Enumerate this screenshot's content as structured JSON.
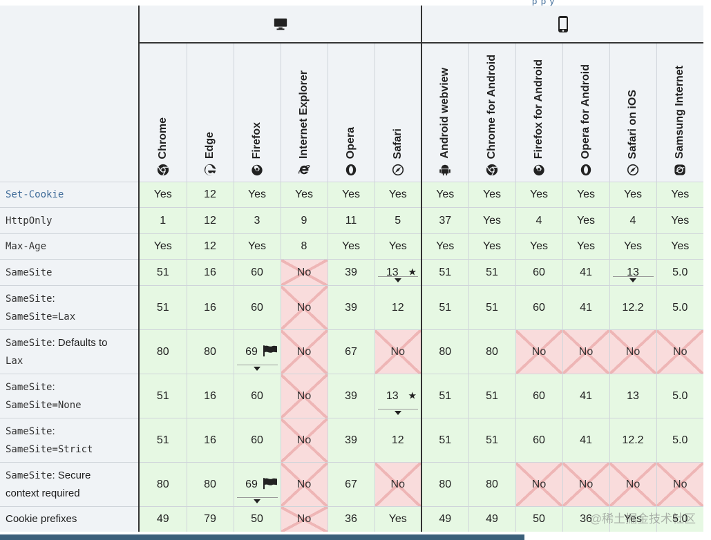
{
  "top_link_fragment": "p      p       y",
  "browsers": [
    {
      "name": "Chrome",
      "icon": "chrome-icon"
    },
    {
      "name": "Edge",
      "icon": "edge-icon"
    },
    {
      "name": "Firefox",
      "icon": "firefox-icon"
    },
    {
      "name": "Internet Explorer",
      "icon": "internet-explorer-icon"
    },
    {
      "name": "Opera",
      "icon": "opera-icon"
    },
    {
      "name": "Safari",
      "icon": "safari-icon"
    },
    {
      "name": "Android webview",
      "icon": "android-icon"
    },
    {
      "name": "Chrome for Android",
      "icon": "chrome-icon"
    },
    {
      "name": "Firefox for Android",
      "icon": "firefox-icon"
    },
    {
      "name": "Opera for Android",
      "icon": "opera-icon"
    },
    {
      "name": "Safari on iOS",
      "icon": "safari-icon"
    },
    {
      "name": "Samsung Internet",
      "icon": "samsung-internet-icon"
    }
  ],
  "platforms": [
    {
      "icon": "desktop-icon",
      "span": 6
    },
    {
      "icon": "mobile-icon",
      "span": 6
    }
  ],
  "rows": [
    {
      "code": "Set-Cookie",
      "link": true,
      "text": "",
      "height": 37,
      "cells": [
        [
          "Yes",
          "y"
        ],
        [
          "12",
          "y"
        ],
        [
          "Yes",
          "y"
        ],
        [
          "Yes",
          "y"
        ],
        [
          "Yes",
          "y"
        ],
        [
          "Yes",
          "y"
        ],
        [
          "Yes",
          "y"
        ],
        [
          "Yes",
          "y"
        ],
        [
          "Yes",
          "y"
        ],
        [
          "Yes",
          "y"
        ],
        [
          "Yes",
          "y"
        ],
        [
          "Yes",
          "y"
        ]
      ]
    },
    {
      "code": "HttpOnly",
      "text": "",
      "height": 38,
      "cells": [
        [
          "1",
          "y"
        ],
        [
          "12",
          "y"
        ],
        [
          "3",
          "y"
        ],
        [
          "9",
          "y"
        ],
        [
          "11",
          "y"
        ],
        [
          "5",
          "y"
        ],
        [
          "37",
          "y"
        ],
        [
          "Yes",
          "y"
        ],
        [
          "4",
          "y"
        ],
        [
          "Yes",
          "y"
        ],
        [
          "4",
          "y"
        ],
        [
          "Yes",
          "y"
        ]
      ]
    },
    {
      "code": "Max-Age",
      "text": "",
      "height": 37,
      "cells": [
        [
          "Yes",
          "y"
        ],
        [
          "12",
          "y"
        ],
        [
          "Yes",
          "y"
        ],
        [
          "8",
          "y"
        ],
        [
          "Yes",
          "y"
        ],
        [
          "Yes",
          "y"
        ],
        [
          "Yes",
          "y"
        ],
        [
          "Yes",
          "y"
        ],
        [
          "Yes",
          "y"
        ],
        [
          "Yes",
          "y"
        ],
        [
          "Yes",
          "y"
        ],
        [
          "Yes",
          "y"
        ]
      ]
    },
    {
      "code": "SameSite",
      "text": "",
      "height": 38,
      "cells": [
        [
          "51",
          "y"
        ],
        [
          "16",
          "y"
        ],
        [
          "60",
          "y"
        ],
        [
          "No",
          "n"
        ],
        [
          "39",
          "y"
        ],
        [
          "13",
          "y",
          "star-arrow"
        ],
        [
          "51",
          "y"
        ],
        [
          "51",
          "y"
        ],
        [
          "60",
          "y"
        ],
        [
          "41",
          "y"
        ],
        [
          "13",
          "y",
          "arrow"
        ],
        [
          "5.0",
          "y"
        ]
      ]
    },
    {
      "code": "SameSite",
      "text": ":",
      "code2": "SameSite=Lax",
      "height": 64,
      "cells": [
        [
          "51",
          "y"
        ],
        [
          "16",
          "y"
        ],
        [
          "60",
          "y"
        ],
        [
          "No",
          "n"
        ],
        [
          "39",
          "y"
        ],
        [
          "12",
          "y"
        ],
        [
          "51",
          "y"
        ],
        [
          "51",
          "y"
        ],
        [
          "60",
          "y"
        ],
        [
          "41",
          "y"
        ],
        [
          "12.2",
          "y"
        ],
        [
          "5.0",
          "y"
        ]
      ]
    },
    {
      "code": "SameSite",
      "text": ": Defaults to",
      "code2": "Lax",
      "height": 64,
      "cells": [
        [
          "80",
          "y"
        ],
        [
          "80",
          "y"
        ],
        [
          "69",
          "y",
          "flag-arrow"
        ],
        [
          "No",
          "n"
        ],
        [
          "67",
          "y"
        ],
        [
          "No",
          "n"
        ],
        [
          "80",
          "y"
        ],
        [
          "80",
          "y"
        ],
        [
          "No",
          "n"
        ],
        [
          "No",
          "n"
        ],
        [
          "No",
          "n"
        ],
        [
          "No",
          "n"
        ]
      ]
    },
    {
      "code": "SameSite",
      "text": ":",
      "code2": "SameSite=None",
      "height": 64,
      "cells": [
        [
          "51",
          "y"
        ],
        [
          "16",
          "y"
        ],
        [
          "60",
          "y"
        ],
        [
          "No",
          "n"
        ],
        [
          "39",
          "y"
        ],
        [
          "13",
          "y",
          "star-arrow"
        ],
        [
          "51",
          "y"
        ],
        [
          "51",
          "y"
        ],
        [
          "60",
          "y"
        ],
        [
          "41",
          "y"
        ],
        [
          "13",
          "y"
        ],
        [
          "5.0",
          "y"
        ]
      ]
    },
    {
      "code": "SameSite",
      "text": ":",
      "code2": "SameSite=Strict",
      "height": 64,
      "cells": [
        [
          "51",
          "y"
        ],
        [
          "16",
          "y"
        ],
        [
          "60",
          "y"
        ],
        [
          "No",
          "n"
        ],
        [
          "39",
          "y"
        ],
        [
          "12",
          "y"
        ],
        [
          "51",
          "y"
        ],
        [
          "51",
          "y"
        ],
        [
          "60",
          "y"
        ],
        [
          "41",
          "y"
        ],
        [
          "12.2",
          "y"
        ],
        [
          "5.0",
          "y"
        ]
      ]
    },
    {
      "code": "SameSite",
      "text": ": Secure",
      "text2": "context required",
      "height": 64,
      "cells": [
        [
          "80",
          "y"
        ],
        [
          "80",
          "y"
        ],
        [
          "69",
          "y",
          "flag-arrow"
        ],
        [
          "No",
          "n"
        ],
        [
          "67",
          "y"
        ],
        [
          "No",
          "n"
        ],
        [
          "80",
          "y"
        ],
        [
          "80",
          "y"
        ],
        [
          "No",
          "n"
        ],
        [
          "No",
          "n"
        ],
        [
          "No",
          "n"
        ],
        [
          "No",
          "n"
        ]
      ]
    },
    {
      "code": "",
      "text": "Cookie prefixes",
      "height": 36,
      "cells": [
        [
          "49",
          "y"
        ],
        [
          "79",
          "y"
        ],
        [
          "50",
          "y"
        ],
        [
          "No",
          "n"
        ],
        [
          "36",
          "y"
        ],
        [
          "Yes",
          "y"
        ],
        [
          "49",
          "y"
        ],
        [
          "49",
          "y"
        ],
        [
          "50",
          "y"
        ],
        [
          "36",
          "y"
        ],
        [
          "Yes",
          "y"
        ],
        [
          "5.0",
          "y"
        ]
      ]
    }
  ],
  "watermark": "@稀土掘金技术社区"
}
